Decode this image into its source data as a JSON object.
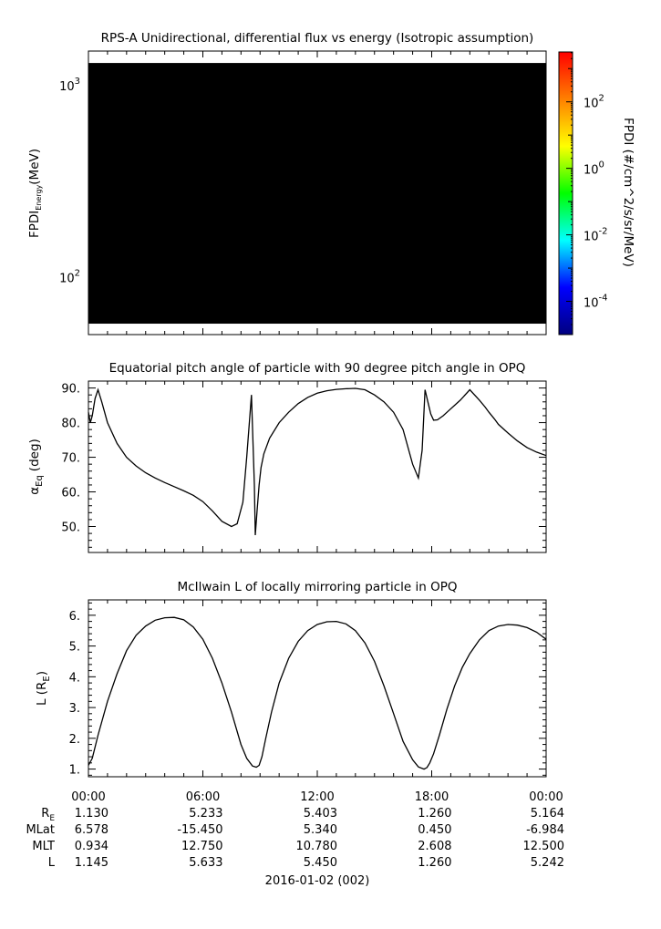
{
  "chart_data": [
    {
      "type": "heatmap",
      "title": "RPS-A Unidirectional, differential flux vs energy (Isotropic assumption)",
      "ylabel_main": "FPDI",
      "ylabel_sub": "Energy",
      "ylabel_unit": "(MeV)",
      "yscale": "log",
      "ylim": [
        50,
        1500
      ],
      "y_ticks": [
        {
          "value": 100,
          "base": "10",
          "exp": "2"
        },
        {
          "value": 1000,
          "base": "10",
          "exp": "3"
        }
      ],
      "fill_color": "#000000",
      "data_extent": {
        "y": [
          57,
          1300
        ]
      },
      "colorbar": {
        "label": "FPDI (#/cm^2/s/sr/MeV)",
        "scale": "log",
        "range_exp": [
          -5,
          3.5
        ],
        "ticks": [
          {
            "value_exp": 2,
            "base": "10",
            "exp": "2"
          },
          {
            "value_exp": 0,
            "base": "10",
            "exp": "0"
          },
          {
            "value_exp": -2,
            "base": "10",
            "exp": "-2"
          },
          {
            "value_exp": -4,
            "base": "10",
            "exp": "-4"
          }
        ],
        "colormap": [
          "#00007f",
          "#0000ff",
          "#00ffff",
          "#00ff00",
          "#ffff00",
          "#ff8000",
          "#ff0000"
        ]
      }
    },
    {
      "type": "line",
      "title": "Equatorial pitch angle of particle with 90 degree pitch angle in OPQ",
      "ylabel_main": "α",
      "ylabel_sub": "Eq",
      "ylabel_unit": "(deg)",
      "ylim": [
        42.5,
        92
      ],
      "yticks": [
        50,
        60,
        70,
        80,
        90
      ],
      "ytick_labels": [
        "50.",
        "60.",
        "70.",
        "80.",
        "90."
      ],
      "x_hours": [
        0,
        0.1,
        0.2,
        0.35,
        0.5,
        0.7,
        1.0,
        1.5,
        2.0,
        2.5,
        3.0,
        3.5,
        4.0,
        4.5,
        5.0,
        5.5,
        6.0,
        6.5,
        7.0,
        7.5,
        7.8,
        8.1,
        8.3,
        8.55,
        8.7,
        8.75,
        8.85,
        8.95,
        9.05,
        9.2,
        9.5,
        10.0,
        10.5,
        11.0,
        11.5,
        12.0,
        12.5,
        13.0,
        13.5,
        14.0,
        14.5,
        15.0,
        15.5,
        16.0,
        16.5,
        17.0,
        17.3,
        17.5,
        17.65,
        17.8,
        17.95,
        18.1,
        18.3,
        18.6,
        18.9,
        19.2,
        19.5,
        20.0,
        20.5,
        20.8,
        21.0,
        21.3,
        21.5,
        22.0,
        22.5,
        23.0,
        23.5,
        24.0
      ],
      "values": [
        83,
        80,
        82,
        87,
        89.5,
        86,
        80,
        74,
        70,
        67.5,
        65.5,
        64,
        62.7,
        61.5,
        60.3,
        59,
        57.2,
        54.5,
        51.5,
        50,
        50.8,
        57,
        70,
        88,
        62,
        47.5,
        55,
        62,
        67,
        71,
        75.5,
        80,
        83,
        85.5,
        87.3,
        88.5,
        89.2,
        89.6,
        89.8,
        89.9,
        89.5,
        88,
        86,
        83,
        78,
        68,
        64,
        72,
        89.5,
        86,
        82.5,
        80.7,
        80.8,
        82,
        83.5,
        85,
        86.5,
        89.5,
        86.5,
        84.5,
        83,
        81,
        79.5,
        77,
        74.7,
        72.8,
        71.5,
        70.5
      ],
      "xlim": [
        0,
        24
      ]
    },
    {
      "type": "line",
      "title": "McIlwain L of locally mirroring particle in OPQ",
      "ylabel_main": "L (R",
      "ylabel_sub": "E",
      "ylabel_unit": ")",
      "ylim": [
        0.75,
        6.5
      ],
      "yticks": [
        1,
        2,
        3,
        4,
        5,
        6
      ],
      "ytick_labels": [
        "1.",
        "2.",
        "3.",
        "4.",
        "5.",
        "6."
      ],
      "x_hours": [
        0,
        0.2,
        0.5,
        1.0,
        1.5,
        2.0,
        2.5,
        3.0,
        3.5,
        4.0,
        4.5,
        5.0,
        5.5,
        6.0,
        6.5,
        7.0,
        7.5,
        8.0,
        8.3,
        8.6,
        8.8,
        8.95,
        9.1,
        9.3,
        9.6,
        10.0,
        10.5,
        11.0,
        11.5,
        12.0,
        12.5,
        13.0,
        13.5,
        14.0,
        14.5,
        15.0,
        15.5,
        16.0,
        16.5,
        17.0,
        17.3,
        17.6,
        17.75,
        17.9,
        18.1,
        18.4,
        18.8,
        19.2,
        19.6,
        20.0,
        20.5,
        21.0,
        21.5,
        22.0,
        22.5,
        23.0,
        23.5,
        24.0
      ],
      "values": [
        1.12,
        1.35,
        2.1,
        3.2,
        4.1,
        4.85,
        5.35,
        5.65,
        5.84,
        5.92,
        5.93,
        5.85,
        5.62,
        5.22,
        4.6,
        3.8,
        2.85,
        1.8,
        1.35,
        1.1,
        1.06,
        1.12,
        1.4,
        2.0,
        2.85,
        3.8,
        4.6,
        5.15,
        5.5,
        5.7,
        5.79,
        5.8,
        5.72,
        5.5,
        5.1,
        4.5,
        3.7,
        2.8,
        1.9,
        1.3,
        1.07,
        1.0,
        1.05,
        1.2,
        1.5,
        2.1,
        2.95,
        3.7,
        4.3,
        4.75,
        5.2,
        5.5,
        5.65,
        5.7,
        5.68,
        5.6,
        5.45,
        5.22
      ],
      "xlim": [
        0,
        24
      ]
    }
  ],
  "x_axis": {
    "tick_labels": [
      "00:00",
      "06:00",
      "12:00",
      "18:00",
      "00:00"
    ],
    "tick_hours": [
      0,
      6,
      12,
      18,
      24
    ],
    "date_label": "2016-01-02 (002)"
  },
  "ephemeris": {
    "rows": [
      {
        "label_main": "R",
        "label_sub": "E",
        "values": [
          "1.130",
          "5.233",
          "5.403",
          "1.260",
          "5.164"
        ]
      },
      {
        "label_main": "MLat",
        "label_sub": "",
        "values": [
          "6.578",
          "-15.450",
          "5.340",
          "0.450",
          "-6.984"
        ]
      },
      {
        "label_main": "MLT",
        "label_sub": "",
        "values": [
          "0.934",
          "12.750",
          "10.780",
          "2.608",
          "12.500"
        ]
      },
      {
        "label_main": "L",
        "label_sub": "",
        "values": [
          "1.145",
          "5.633",
          "5.450",
          "1.260",
          "5.242"
        ]
      }
    ]
  }
}
